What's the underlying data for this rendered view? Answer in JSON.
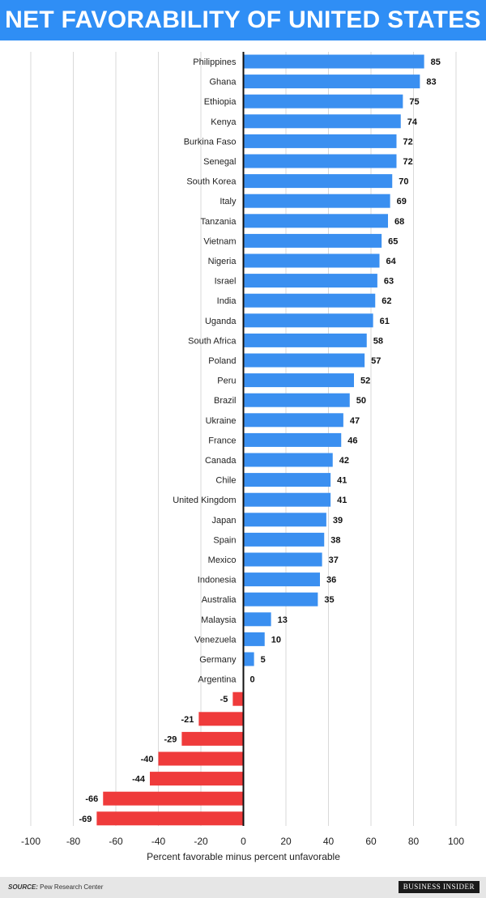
{
  "title": "NET FAVORABILITY OF UNITED STATES",
  "colors": {
    "header_bg": "#2f8ef5",
    "positive": "#3a8ff0",
    "negative": "#ef3b3b"
  },
  "footer": {
    "source_label": "SOURCE:",
    "source_text": "Pew Research Center",
    "brand": "BUSINESS INSIDER"
  },
  "chart_data": {
    "type": "bar",
    "orientation": "horizontal",
    "xlabel": "Percent favorable minus percent unfavorable",
    "xlim": [
      -100,
      100
    ],
    "xticks": [
      -100,
      -80,
      -60,
      -40,
      -20,
      0,
      20,
      40,
      60,
      80,
      100
    ],
    "grid": true,
    "categories": [
      "Philippines",
      "Ghana",
      "Ethiopia",
      "Kenya",
      "Burkina Faso",
      "Senegal",
      "South Korea",
      "Italy",
      "Tanzania",
      "Vietnam",
      "Nigeria",
      "Israel",
      "India",
      "Uganda",
      "South Africa",
      "Poland",
      "Peru",
      "Brazil",
      "Ukraine",
      "France",
      "Canada",
      "Chile",
      "United Kingdom",
      "Japan",
      "Spain",
      "Mexico",
      "Indonesia",
      "Australia",
      "Malaysia",
      "Venezuela",
      "Germany",
      "Argentina",
      "",
      "",
      "",
      "",
      "",
      "",
      ""
    ],
    "values": [
      85,
      83,
      75,
      74,
      72,
      72,
      70,
      69,
      68,
      65,
      64,
      63,
      62,
      61,
      58,
      57,
      52,
      50,
      47,
      46,
      42,
      41,
      41,
      39,
      38,
      37,
      36,
      35,
      13,
      10,
      5,
      0,
      -5,
      -21,
      -29,
      -40,
      -44,
      -66,
      -69
    ]
  }
}
